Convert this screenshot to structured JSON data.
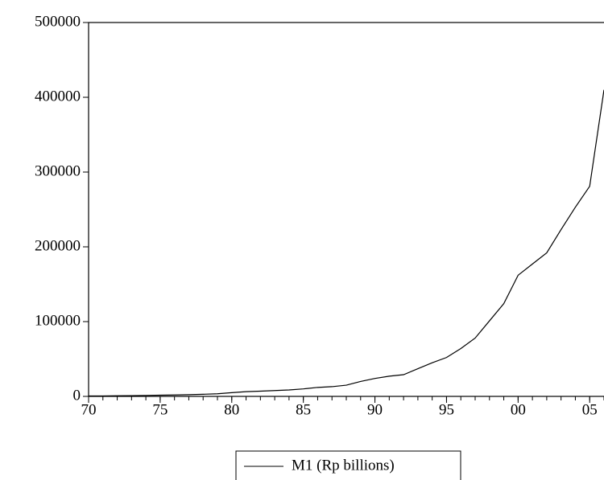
{
  "chart_data": {
    "type": "line",
    "x": [
      1970,
      1971,
      1972,
      1973,
      1974,
      1975,
      1976,
      1977,
      1978,
      1979,
      1980,
      1981,
      1982,
      1983,
      1984,
      1985,
      1986,
      1987,
      1988,
      1989,
      1990,
      1991,
      1992,
      1993,
      1994,
      1995,
      1996,
      1997,
      1998,
      1999,
      2000,
      2001,
      2002,
      2003,
      2004,
      2005,
      2006
    ],
    "series": [
      {
        "name": "M1 (Rp billions)",
        "color": "#000000",
        "values": [
          500,
          600,
          800,
          1000,
          1300,
          1600,
          1900,
          2300,
          2800,
          3500,
          5000,
          6300,
          7000,
          7800,
          8600,
          10000,
          12000,
          13000,
          15000,
          20000,
          24000,
          27000,
          29000,
          37000,
          45000,
          52000,
          64000,
          78000,
          101000,
          124000,
          162000,
          177000,
          192000,
          223000,
          253000,
          281000,
          410000
        ]
      }
    ],
    "xlim": [
      1970,
      2006
    ],
    "xticks": [
      {
        "value": 1970,
        "label": "70"
      },
      {
        "value": 1975,
        "label": "75"
      },
      {
        "value": 1980,
        "label": "80"
      },
      {
        "value": 1985,
        "label": "85"
      },
      {
        "value": 1990,
        "label": "90"
      },
      {
        "value": 1995,
        "label": "95"
      },
      {
        "value": 2000,
        "label": "00"
      },
      {
        "value": 2005,
        "label": "05"
      }
    ],
    "ylim": [
      0,
      500000
    ],
    "yticks": [
      0,
      100000,
      200000,
      300000,
      400000,
      500000
    ],
    "legend": "bottom-center"
  }
}
